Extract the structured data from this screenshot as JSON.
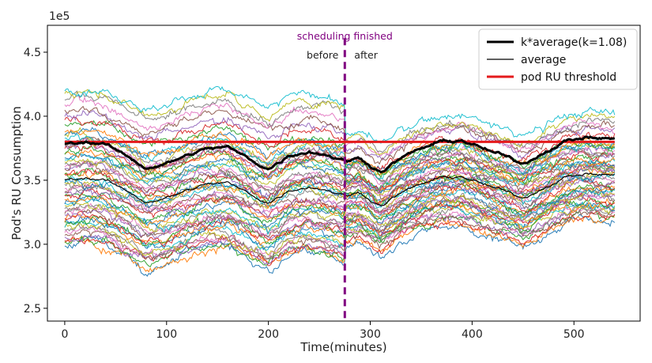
{
  "chart_data": {
    "type": "line",
    "xlabel": "Time(minutes)",
    "ylabel": "Pod's RU Consumption",
    "y_multiplier_label": "1e5",
    "xlim": [
      -17,
      565
    ],
    "ylim": [
      2.4,
      4.71
    ],
    "x_ticks": [
      0,
      100,
      200,
      300,
      400,
      500
    ],
    "x_tick_labels": [
      "0",
      "100",
      "200",
      "300",
      "400",
      "500"
    ],
    "y_ticks": [
      2.5,
      3.0,
      3.5,
      4.0,
      4.5
    ],
    "y_tick_labels": [
      "2.5",
      "3.0",
      "3.5",
      "4.0",
      "4.5"
    ],
    "legend_position": "top-right",
    "pod_count": 60,
    "pod_colors": [
      "#1f77b4",
      "#ff7f0e",
      "#2ca02c",
      "#d62728",
      "#9467bd",
      "#8c564b",
      "#e377c2",
      "#7f7f7f",
      "#bcbd22",
      "#17becf"
    ],
    "average_series": {
      "name": "average",
      "color": "#000000",
      "x": [
        0,
        20,
        40,
        60,
        80,
        100,
        120,
        140,
        160,
        180,
        200,
        220,
        240,
        260,
        275,
        290,
        310,
        330,
        350,
        370,
        390,
        410,
        430,
        450,
        470,
        490,
        510,
        540
      ],
      "y": [
        3.5,
        3.52,
        3.5,
        3.42,
        3.33,
        3.36,
        3.42,
        3.47,
        3.48,
        3.4,
        3.32,
        3.42,
        3.45,
        3.42,
        3.38,
        3.4,
        3.3,
        3.4,
        3.47,
        3.52,
        3.53,
        3.47,
        3.42,
        3.36,
        3.44,
        3.52,
        3.55,
        3.54
      ]
    },
    "k_average_series": {
      "name": "k*average(k=1.08)",
      "color": "#000000",
      "k": 1.08
    },
    "threshold": {
      "name": "pod RU threshold",
      "value": 3.8,
      "color": "#e41a1c"
    },
    "event_marker": {
      "x": 275,
      "label": "scheduling finished",
      "before_label": "before",
      "after_label": "after",
      "color": "#800080"
    },
    "legend": [
      {
        "label": "k*average(k=1.08)",
        "color": "#000000",
        "style": "thick"
      },
      {
        "label": "average",
        "color": "#000000",
        "style": "thin"
      },
      {
        "label": "pod RU threshold",
        "color": "#e41a1c",
        "style": "thick"
      }
    ]
  }
}
